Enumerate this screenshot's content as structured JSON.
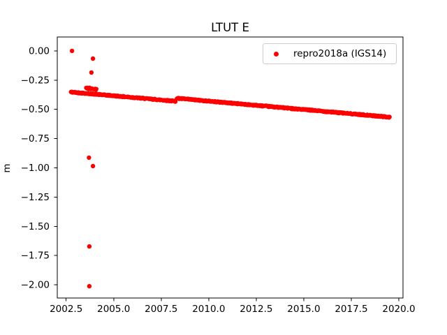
{
  "chart_data": {
    "type": "scatter",
    "title": "LTUT E",
    "xlabel": "",
    "ylabel": "m",
    "grid": false,
    "legend_position": "upper right",
    "legend": [
      {
        "label": "repro2018a (IGS14)",
        "marker": "dot",
        "color": "#ff0000"
      }
    ],
    "xlim": [
      2002.033,
      2020.22
    ],
    "ylim": [
      -2.113,
      0.119
    ],
    "x_ticks": [
      2002.5,
      2005.0,
      2007.5,
      2010.0,
      2012.5,
      2015.0,
      2017.5,
      2020.0
    ],
    "x_tick_labels": [
      "2002.5",
      "2005.0",
      "2007.5",
      "2010.0",
      "2012.5",
      "2015.0",
      "2017.5",
      "2020.0"
    ],
    "y_ticks": [
      0.0,
      -0.25,
      -0.5,
      -0.75,
      -1.0,
      -1.25,
      -1.5,
      -1.75,
      -2.0
    ],
    "y_tick_labels": [
      "0.00",
      "−0.25",
      "−0.50",
      "−0.75",
      "−1.00",
      "−1.25",
      "−1.50",
      "−1.75",
      "−2.00"
    ],
    "colors": {
      "marker": "#ff0000",
      "spine": "#000000",
      "background": "#ffffff",
      "legend_border": "#cccccc"
    },
    "series": [
      {
        "name": "repro2018a (IGS14)",
        "color": "#ff0000",
        "marker_radius_px": 3,
        "trend_segments": [
          {
            "x_start": 2002.75,
            "y_start": -0.352,
            "x_end": 2008.25,
            "y_end": -0.43,
            "sample_step_years": 0.02,
            "y_jitter": 0.005
          },
          {
            "x_start": 2008.32,
            "y_start": -0.405,
            "x_end": 2019.53,
            "y_end": -0.567,
            "sample_step_years": 0.02,
            "y_jitter": 0.005
          },
          {
            "x_start": 2003.55,
            "y_start": -0.318,
            "x_end": 2004.1,
            "y_end": -0.328,
            "sample_step_years": 0.03,
            "y_jitter": 0.008
          }
        ],
        "outlier_points": [
          [
            2002.81,
            0.0
          ],
          [
            2003.91,
            -0.066
          ],
          [
            2003.83,
            -0.185
          ],
          [
            2003.7,
            -0.913
          ],
          [
            2003.91,
            -0.985
          ],
          [
            2003.72,
            -1.672
          ],
          [
            2003.72,
            -2.012
          ]
        ]
      }
    ]
  }
}
